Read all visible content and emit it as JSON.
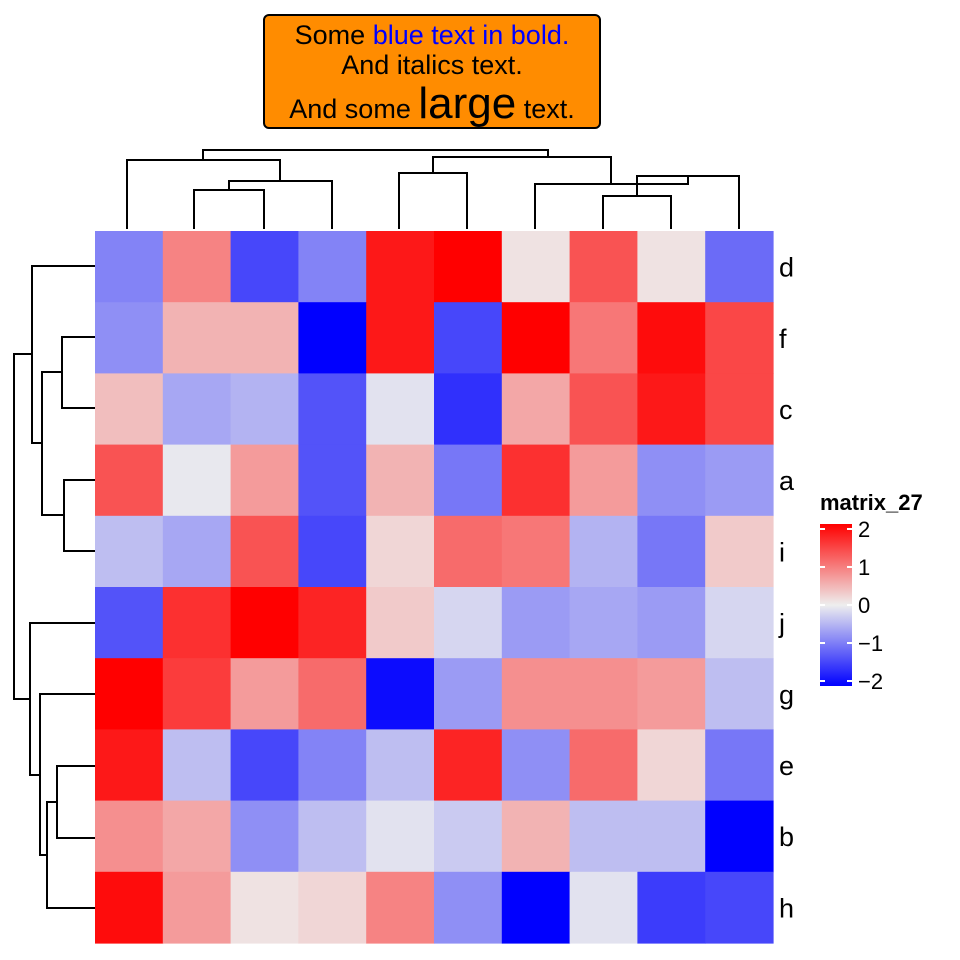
{
  "title": {
    "line1_prefix": "Some ",
    "line1_blue": "blue text in bold.",
    "line2": "And italics text.",
    "line3_prefix": "And some ",
    "line3_large": "large",
    "line3_suffix": " text.",
    "box_color": "#ff8c00",
    "blue_color": "#0000ff"
  },
  "chart_data": {
    "type": "heatmap",
    "name": "matrix_27",
    "rows": [
      "d",
      "f",
      "c",
      "a",
      "i",
      "j",
      "g",
      "e",
      "b",
      "h"
    ],
    "columns": [
      "",
      "",
      "",
      "",
      "",
      "",
      "",
      "",
      "",
      ""
    ],
    "values": [
      [
        -0.9,
        0.9,
        -1.4,
        -0.9,
        1.8,
        2.2,
        0.1,
        1.3,
        0.1,
        -1.1
      ],
      [
        -0.8,
        0.5,
        0.5,
        -2.1,
        1.8,
        -1.4,
        2.0,
        1.0,
        1.9,
        1.4
      ],
      [
        0.4,
        -0.6,
        -0.5,
        -1.3,
        -0.1,
        -1.6,
        0.6,
        1.3,
        1.8,
        1.4
      ],
      [
        1.3,
        -0.05,
        0.7,
        -1.3,
        0.5,
        -1.0,
        1.6,
        0.7,
        -0.8,
        -0.7
      ],
      [
        -0.4,
        -0.6,
        1.3,
        -1.4,
        0.2,
        1.1,
        1.0,
        -0.5,
        -1.0,
        0.3
      ],
      [
        -1.3,
        1.6,
        2.3,
        1.7,
        0.3,
        -0.2,
        -0.7,
        -0.6,
        -0.7,
        -0.2
      ],
      [
        2.5,
        1.5,
        0.7,
        1.1,
        -1.9,
        -0.7,
        0.8,
        0.8,
        0.7,
        -0.4
      ],
      [
        1.8,
        -0.4,
        -1.4,
        -0.9,
        -0.4,
        1.7,
        -0.8,
        1.1,
        0.2,
        -1.0
      ],
      [
        0.8,
        0.6,
        -0.8,
        -0.4,
        -0.1,
        -0.3,
        0.5,
        -0.4,
        -0.4,
        -2.6
      ],
      [
        1.9,
        0.7,
        0.1,
        0.2,
        0.9,
        -0.8,
        -2.3,
        -0.1,
        -1.5,
        -1.4
      ]
    ],
    "col_dendrogram_order": [
      0,
      1,
      2,
      3,
      4,
      5,
      6,
      7,
      8,
      9
    ],
    "row_dendrogram_order": [
      0,
      1,
      2,
      3,
      4,
      5,
      6,
      7,
      8,
      9
    ],
    "legend": {
      "title": "matrix_27",
      "ticks": [
        2,
        1,
        0,
        -1,
        -2
      ],
      "tick_labels": [
        "2",
        "1",
        "0",
        "−1",
        "−2"
      ],
      "range": [
        -2,
        2
      ],
      "colors": {
        "low": "#0000ff",
        "mid": "#eeeeee",
        "high": "#ff0000"
      },
      "placement": "right"
    }
  }
}
